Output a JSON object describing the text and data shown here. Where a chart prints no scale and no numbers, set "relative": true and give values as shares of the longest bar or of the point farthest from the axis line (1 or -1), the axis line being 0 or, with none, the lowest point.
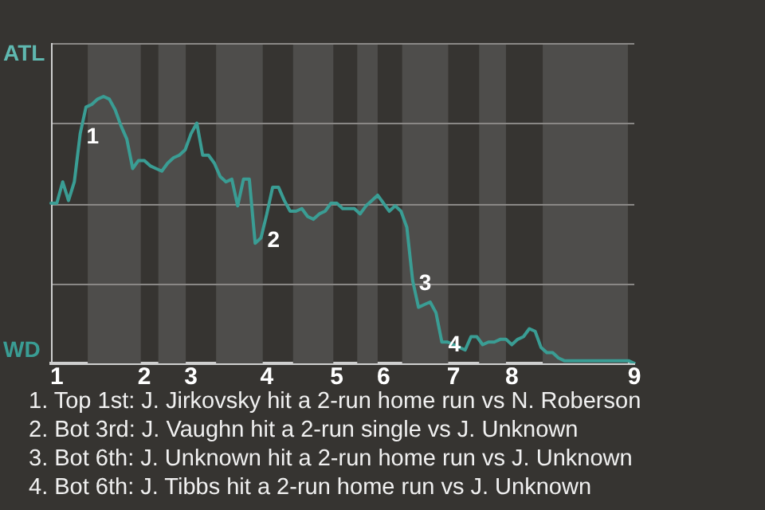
{
  "chart_data": {
    "type": "line",
    "relative": true,
    "categories": [
      null,
      "1",
      null,
      null,
      null,
      null,
      null,
      null,
      null,
      null,
      null,
      null,
      null,
      null,
      null,
      null,
      "2",
      null,
      null,
      null,
      null,
      null,
      null,
      null,
      "3",
      null,
      null,
      null,
      null,
      null,
      null,
      null,
      null,
      null,
      null,
      null,
      null,
      "4",
      null,
      null,
      null,
      null,
      null,
      null,
      null,
      null,
      null,
      null,
      null,
      "5",
      null,
      null,
      null,
      null,
      null,
      null,
      null,
      "6",
      null,
      null,
      null,
      null,
      null,
      null,
      null,
      null,
      null,
      null,
      null,
      "7",
      null,
      null,
      null,
      null,
      null,
      null,
      null,
      null,
      null,
      "8",
      null,
      null,
      null,
      null,
      null,
      null,
      null,
      null,
      null,
      null,
      null,
      null,
      null,
      null,
      null,
      null,
      null,
      null,
      null,
      null,
      "9"
    ],
    "series": [
      {
        "color": "#3a9d94",
        "values": [
          0.6,
          0.6,
          0.68,
          0.61,
          0.68,
          0.86,
          0.96,
          0.97,
          0.99,
          1,
          0.99,
          0.95,
          0.89,
          0.84,
          0.73,
          0.76,
          0.76,
          0.74,
          0.73,
          0.72,
          0.75,
          0.77,
          0.78,
          0.8,
          0.86,
          0.9,
          0.78,
          0.78,
          0.75,
          0.7,
          0.68,
          0.69,
          0.59,
          0.69,
          0.69,
          0.45,
          0.47,
          0.56,
          0.66,
          0.66,
          0.61,
          0.57,
          0.57,
          0.58,
          0.55,
          0.54,
          0.56,
          0.57,
          0.6,
          0.6,
          0.58,
          0.58,
          0.58,
          0.56,
          0.59,
          0.61,
          0.63,
          0.6,
          0.57,
          0.59,
          0.57,
          0.51,
          0.31,
          0.21,
          0.22,
          0.23,
          0.19,
          0.08,
          0.08,
          0.07,
          0.06,
          0.05,
          0.1,
          0.1,
          0.07,
          0.08,
          0.08,
          0.09,
          0.09,
          0.07,
          0.09,
          0.1,
          0.13,
          0.12,
          0.06,
          0.04,
          0.04,
          0.02,
          0.01,
          0.01,
          0.01,
          0.01,
          0.01,
          0.01,
          0.01,
          0.01,
          0.01,
          0.01,
          0.01,
          0.01,
          0
        ]
      }
    ],
    "grid": "y",
    "marker": "none",
    "annotations": [
      "ATL",
      "WD",
      "1",
      "2",
      "3",
      "4",
      "1. Top 1st: J. Jirkovsky hit a 2-run home run vs N. Roberson",
      "2. Bot 3rd: J. Vaughn hit a 2-run single vs J. Unknown",
      "3. Bot 6th: J. Unknown hit a 2-run home run vs J. Unknown",
      "4. Bot 6th: J. Tibbs hit a 2-run home run vs J. Unknown"
    ]
  }
}
